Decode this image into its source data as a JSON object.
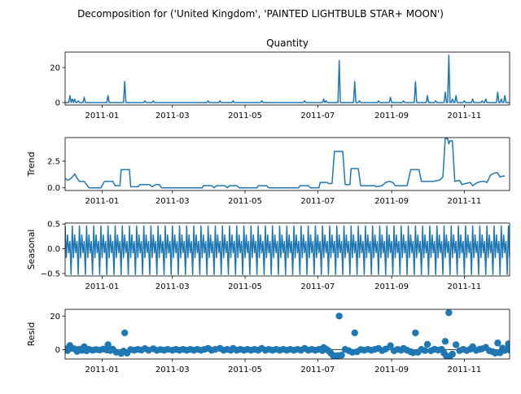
{
  "suptitle": "Decomposition for ('United Kingdom', 'PAINTED LIGHTBULB STAR+ MOON')",
  "x_ticks": [
    "2011-01",
    "2011-03",
    "2011-05",
    "2011-07",
    "2011-09",
    "2011-11"
  ],
  "chart_data": [
    {
      "type": "line",
      "title": "Quantity",
      "ylabel": "",
      "ylim": [
        -1.4,
        28.8
      ],
      "yticks": [
        "0",
        "20"
      ],
      "x_range": [
        "2010-12-01",
        "2011-12-09"
      ],
      "color": "#1f77b4",
      "base_value": 0,
      "spikes": [
        {
          "date": "2010-12-05",
          "value": 4
        },
        {
          "date": "2010-12-07",
          "value": 2
        },
        {
          "date": "2010-12-09",
          "value": 2
        },
        {
          "date": "2010-12-12",
          "value": 1
        },
        {
          "date": "2010-12-17",
          "value": 3
        },
        {
          "date": "2011-01-06",
          "value": 4
        },
        {
          "date": "2011-01-20",
          "value": 12
        },
        {
          "date": "2011-02-06",
          "value": 1
        },
        {
          "date": "2011-02-13",
          "value": 1
        },
        {
          "date": "2011-03-31",
          "value": 1
        },
        {
          "date": "2011-04-10",
          "value": 1
        },
        {
          "date": "2011-04-21",
          "value": 1
        },
        {
          "date": "2011-05-15",
          "value": 1
        },
        {
          "date": "2011-06-20",
          "value": 1
        },
        {
          "date": "2011-07-06",
          "value": 2
        },
        {
          "date": "2011-07-08",
          "value": 1
        },
        {
          "date": "2011-07-19",
          "value": 24
        },
        {
          "date": "2011-08-01",
          "value": 12
        },
        {
          "date": "2011-08-05",
          "value": 1
        },
        {
          "date": "2011-08-21",
          "value": 1
        },
        {
          "date": "2011-08-31",
          "value": 3
        },
        {
          "date": "2011-09-11",
          "value": 1
        },
        {
          "date": "2011-09-21",
          "value": 12
        },
        {
          "date": "2011-10-01",
          "value": 4
        },
        {
          "date": "2011-10-08",
          "value": 1
        },
        {
          "date": "2011-10-16",
          "value": 6
        },
        {
          "date": "2011-10-19",
          "value": 27
        },
        {
          "date": "2011-10-22",
          "value": 2
        },
        {
          "date": "2011-10-25",
          "value": 4
        },
        {
          "date": "2011-11-01",
          "value": 1
        },
        {
          "date": "2011-11-08",
          "value": 2
        },
        {
          "date": "2011-11-16",
          "value": 1
        },
        {
          "date": "2011-11-19",
          "value": 2
        },
        {
          "date": "2011-11-29",
          "value": 6
        },
        {
          "date": "2011-12-02",
          "value": 2
        },
        {
          "date": "2011-12-05",
          "value": 4
        }
      ]
    },
    {
      "type": "line",
      "title": "",
      "ylabel": "Trend",
      "ylim": [
        -0.25,
        4.7
      ],
      "yticks": [
        "0.0",
        "2.5"
      ],
      "color": "#1f77b4",
      "points": [
        [
          "2010-12-01",
          0.9
        ],
        [
          "2010-12-03",
          0.7
        ],
        [
          "2010-12-05",
          0.8
        ],
        [
          "2010-12-07",
          1.0
        ],
        [
          "2010-12-09",
          1.3
        ],
        [
          "2010-12-11",
          0.9
        ],
        [
          "2010-12-13",
          0.6
        ],
        [
          "2010-12-15",
          0.6
        ],
        [
          "2010-12-17",
          0.6
        ],
        [
          "2010-12-19",
          0.3
        ],
        [
          "2010-12-21",
          0.0
        ],
        [
          "2010-12-31",
          0.0
        ],
        [
          "2011-01-03",
          0.6
        ],
        [
          "2011-01-10",
          0.6
        ],
        [
          "2011-01-12",
          0.2
        ],
        [
          "2011-01-16",
          0.2
        ],
        [
          "2011-01-17",
          1.7
        ],
        [
          "2011-01-24",
          1.7
        ],
        [
          "2011-01-25",
          0.1
        ],
        [
          "2011-01-31",
          0.1
        ],
        [
          "2011-02-02",
          0.3
        ],
        [
          "2011-02-10",
          0.3
        ],
        [
          "2011-02-12",
          0.1
        ],
        [
          "2011-02-15",
          0.3
        ],
        [
          "2011-02-18",
          0.3
        ],
        [
          "2011-02-20",
          0.0
        ],
        [
          "2011-03-26",
          0.0
        ],
        [
          "2011-03-27",
          0.2
        ],
        [
          "2011-04-03",
          0.2
        ],
        [
          "2011-04-05",
          0.0
        ],
        [
          "2011-04-07",
          0.2
        ],
        [
          "2011-04-14",
          0.2
        ],
        [
          "2011-04-16",
          0.0
        ],
        [
          "2011-04-18",
          0.2
        ],
        [
          "2011-04-24",
          0.2
        ],
        [
          "2011-04-26",
          0.0
        ],
        [
          "2011-05-11",
          0.0
        ],
        [
          "2011-05-12",
          0.2
        ],
        [
          "2011-05-19",
          0.2
        ],
        [
          "2011-05-21",
          0.0
        ],
        [
          "2011-06-15",
          0.0
        ],
        [
          "2011-06-16",
          0.2
        ],
        [
          "2011-06-23",
          0.2
        ],
        [
          "2011-06-25",
          0.0
        ],
        [
          "2011-07-02",
          0.0
        ],
        [
          "2011-07-03",
          0.5
        ],
        [
          "2011-07-09",
          0.5
        ],
        [
          "2011-07-10",
          0.4
        ],
        [
          "2011-07-13",
          0.4
        ],
        [
          "2011-07-15",
          3.4
        ],
        [
          "2011-07-22",
          3.4
        ],
        [
          "2011-07-24",
          0.3
        ],
        [
          "2011-07-28",
          0.3
        ],
        [
          "2011-07-29",
          1.8
        ],
        [
          "2011-08-04",
          1.8
        ],
        [
          "2011-08-06",
          0.2
        ],
        [
          "2011-08-18",
          0.2
        ],
        [
          "2011-08-19",
          0.1
        ],
        [
          "2011-08-24",
          0.2
        ],
        [
          "2011-08-27",
          0.5
        ],
        [
          "2011-08-30",
          0.6
        ],
        [
          "2011-09-02",
          0.5
        ],
        [
          "2011-09-04",
          0.2
        ],
        [
          "2011-09-08",
          0.2
        ],
        [
          "2011-09-10",
          0.2
        ],
        [
          "2011-09-14",
          0.2
        ],
        [
          "2011-09-17",
          1.7
        ],
        [
          "2011-09-24",
          1.7
        ],
        [
          "2011-09-26",
          0.6
        ],
        [
          "2011-09-28",
          0.6
        ],
        [
          "2011-09-30",
          0.6
        ],
        [
          "2011-10-04",
          0.6
        ],
        [
          "2011-10-06",
          0.6
        ],
        [
          "2011-10-10",
          0.7
        ],
        [
          "2011-10-11",
          0.7
        ],
        [
          "2011-10-14",
          1.0
        ],
        [
          "2011-10-16",
          4.6
        ],
        [
          "2011-10-18",
          4.6
        ],
        [
          "2011-10-19",
          4.1
        ],
        [
          "2011-10-20",
          4.4
        ],
        [
          "2011-10-22",
          4.4
        ],
        [
          "2011-10-24",
          0.6
        ],
        [
          "2011-10-28",
          0.7
        ],
        [
          "2011-10-30",
          0.3
        ],
        [
          "2011-11-02",
          0.4
        ],
        [
          "2011-11-06",
          0.5
        ],
        [
          "2011-11-08",
          0.2
        ],
        [
          "2011-11-12",
          0.5
        ],
        [
          "2011-11-16",
          0.6
        ],
        [
          "2011-11-18",
          0.6
        ],
        [
          "2011-11-20",
          0.5
        ],
        [
          "2011-11-23",
          1.2
        ],
        [
          "2011-11-27",
          1.4
        ],
        [
          "2011-11-29",
          1.4
        ],
        [
          "2011-12-01",
          1.0
        ],
        [
          "2011-12-03",
          1.1
        ],
        [
          "2011-12-05",
          1.1
        ]
      ]
    },
    {
      "type": "line",
      "title": "",
      "ylabel": "Seasonal",
      "ylim": [
        -0.55,
        0.52
      ],
      "yticks": [
        "−0.5",
        "0.0",
        "0.5"
      ],
      "color": "#1f77b4",
      "period_days": 6,
      "weekly_pattern": [
        0.46,
        -0.18,
        0.28,
        -0.08,
        0.15,
        -0.52
      ]
    },
    {
      "type": "scatter",
      "title": "",
      "ylabel": "Resid",
      "ylim": [
        -5.5,
        24
      ],
      "yticks": [
        "0",
        "20"
      ],
      "color": "#1f77b4",
      "baseline_points": [
        [
          "2010-12-01",
          0.5
        ],
        [
          "2010-12-03",
          -0.5
        ],
        [
          "2010-12-05",
          2.5
        ],
        [
          "2010-12-07",
          0.8
        ],
        [
          "2010-12-09",
          0.5
        ],
        [
          "2010-12-11",
          -1.0
        ],
        [
          "2010-12-13",
          0.3
        ],
        [
          "2010-12-15",
          -0.4
        ],
        [
          "2010-12-17",
          1.8
        ],
        [
          "2010-12-19",
          -0.6
        ],
        [
          "2010-12-21",
          0.2
        ],
        [
          "2010-12-24",
          -0.3
        ],
        [
          "2010-12-27",
          0.1
        ],
        [
          "2010-12-30",
          -0.2
        ],
        [
          "2011-01-02",
          0.4
        ],
        [
          "2011-01-05",
          -0.2
        ],
        [
          "2011-01-06",
          3.0
        ],
        [
          "2011-01-08",
          -0.5
        ],
        [
          "2011-01-10",
          0.3
        ],
        [
          "2011-01-13",
          -1.5
        ],
        [
          "2011-01-17",
          -2.2
        ],
        [
          "2011-01-19",
          -0.8
        ],
        [
          "2011-01-22",
          -2.0
        ],
        [
          "2011-01-25",
          0.1
        ],
        [
          "2011-01-28",
          -0.3
        ],
        [
          "2011-01-31",
          0.2
        ],
        [
          "2011-02-03",
          -0.2
        ],
        [
          "2011-02-06",
          0.7
        ],
        [
          "2011-02-09",
          -0.3
        ],
        [
          "2011-02-13",
          0.6
        ],
        [
          "2011-02-16",
          -0.4
        ],
        [
          "2011-02-19",
          0.1
        ],
        [
          "2011-02-22",
          -0.3
        ],
        [
          "2011-02-25",
          0.2
        ],
        [
          "2011-03-01",
          -0.3
        ],
        [
          "2011-03-04",
          0.2
        ],
        [
          "2011-03-07",
          -0.3
        ],
        [
          "2011-03-10",
          0.2
        ],
        [
          "2011-03-13",
          -0.3
        ],
        [
          "2011-03-16",
          0.2
        ],
        [
          "2011-03-19",
          -0.3
        ],
        [
          "2011-03-22",
          0.2
        ],
        [
          "2011-03-25",
          -0.3
        ],
        [
          "2011-03-28",
          0.2
        ],
        [
          "2011-03-31",
          0.8
        ],
        [
          "2011-04-03",
          -0.3
        ],
        [
          "2011-04-06",
          0.2
        ],
        [
          "2011-04-10",
          0.8
        ],
        [
          "2011-04-13",
          -0.3
        ],
        [
          "2011-04-16",
          0.2
        ],
        [
          "2011-04-19",
          -0.3
        ],
        [
          "2011-04-21",
          0.8
        ],
        [
          "2011-04-24",
          -0.3
        ],
        [
          "2011-04-27",
          0.2
        ],
        [
          "2011-04-30",
          -0.3
        ],
        [
          "2011-05-03",
          0.2
        ],
        [
          "2011-05-06",
          -0.3
        ],
        [
          "2011-05-09",
          0.2
        ],
        [
          "2011-05-12",
          -0.3
        ],
        [
          "2011-05-15",
          0.8
        ],
        [
          "2011-05-18",
          -0.3
        ],
        [
          "2011-05-21",
          0.2
        ],
        [
          "2011-05-24",
          -0.3
        ],
        [
          "2011-05-27",
          0.2
        ],
        [
          "2011-05-30",
          -0.3
        ],
        [
          "2011-06-02",
          0.2
        ],
        [
          "2011-06-05",
          -0.3
        ],
        [
          "2011-06-08",
          0.2
        ],
        [
          "2011-06-11",
          -0.3
        ],
        [
          "2011-06-14",
          0.2
        ],
        [
          "2011-06-17",
          -0.3
        ],
        [
          "2011-06-20",
          0.8
        ],
        [
          "2011-06-23",
          -0.3
        ],
        [
          "2011-06-26",
          0.2
        ],
        [
          "2011-06-29",
          -0.3
        ],
        [
          "2011-07-02",
          0.2
        ],
        [
          "2011-07-05",
          -0.5
        ],
        [
          "2011-07-06",
          1.3
        ],
        [
          "2011-07-08",
          0.4
        ],
        [
          "2011-07-10",
          -0.6
        ],
        [
          "2011-07-12",
          -2.0
        ],
        [
          "2011-07-14",
          -3.5
        ],
        [
          "2011-07-16",
          -3.8
        ],
        [
          "2011-07-18",
          -3.5
        ],
        [
          "2011-07-21",
          -3.2
        ],
        [
          "2011-07-24",
          0.2
        ],
        [
          "2011-07-27",
          -0.6
        ],
        [
          "2011-07-30",
          -1.5
        ],
        [
          "2011-08-03",
          -1.2
        ],
        [
          "2011-08-06",
          0.1
        ],
        [
          "2011-08-09",
          -0.3
        ],
        [
          "2011-08-12",
          0.2
        ],
        [
          "2011-08-15",
          -0.3
        ],
        [
          "2011-08-18",
          0.2
        ],
        [
          "2011-08-21",
          0.8
        ],
        [
          "2011-08-24",
          -0.5
        ],
        [
          "2011-08-27",
          0.4
        ],
        [
          "2011-08-31",
          2.4
        ],
        [
          "2011-09-03",
          -0.6
        ],
        [
          "2011-09-06",
          0.2
        ],
        [
          "2011-09-09",
          -0.3
        ],
        [
          "2011-09-11",
          0.8
        ],
        [
          "2011-09-14",
          -0.3
        ],
        [
          "2011-09-17",
          -1.2
        ],
        [
          "2011-09-19",
          -1.7
        ],
        [
          "2011-09-23",
          -1.5
        ],
        [
          "2011-09-26",
          0.2
        ],
        [
          "2011-09-29",
          -0.5
        ],
        [
          "2011-10-01",
          3.2
        ],
        [
          "2011-10-04",
          -0.6
        ],
        [
          "2011-10-07",
          0.3
        ],
        [
          "2011-10-10",
          -0.2
        ],
        [
          "2011-10-13",
          0.2
        ],
        [
          "2011-10-15",
          -2.0
        ],
        [
          "2011-10-17",
          -3.8
        ],
        [
          "2011-10-20",
          -3.8
        ],
        [
          "2011-10-22",
          -2.6
        ],
        [
          "2011-10-25",
          3.0
        ],
        [
          "2011-10-28",
          -0.5
        ],
        [
          "2011-10-31",
          0.2
        ],
        [
          "2011-11-03",
          -0.5
        ],
        [
          "2011-11-06",
          0.3
        ],
        [
          "2011-11-08",
          1.8
        ],
        [
          "2011-11-11",
          -0.4
        ],
        [
          "2011-11-14",
          0.3
        ],
        [
          "2011-11-16",
          0.6
        ],
        [
          "2011-11-19",
          1.4
        ],
        [
          "2011-11-22",
          -0.6
        ],
        [
          "2011-11-25",
          -1.2
        ],
        [
          "2011-11-27",
          -2.0
        ],
        [
          "2011-12-01",
          -1.8
        ],
        [
          "2011-12-03",
          1.0
        ],
        [
          "2011-12-05",
          -0.4
        ],
        [
          "2011-12-07",
          0.5
        ],
        [
          "2011-12-09",
          -0.2
        ]
      ],
      "outliers": [
        [
          "2011-01-20",
          10
        ],
        [
          "2011-07-19",
          20
        ],
        [
          "2011-08-01",
          10
        ],
        [
          "2011-09-21",
          10
        ],
        [
          "2011-10-16",
          5
        ],
        [
          "2011-10-19",
          22
        ],
        [
          "2011-11-29",
          4
        ],
        [
          "2011-12-08",
          3.5
        ]
      ]
    }
  ]
}
